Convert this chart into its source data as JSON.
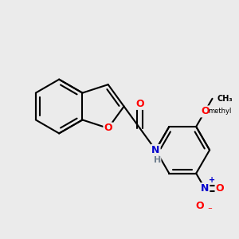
{
  "bg_color": "#ebebeb",
  "bond_color": "#000000",
  "bond_width": 1.5,
  "atom_colors": {
    "O": "#ff0000",
    "N_blue": "#0000cd",
    "H_gray": "#708090",
    "C": "#000000"
  },
  "font_size": 9,
  "font_size_small": 7,
  "xlim": [
    -1.5,
    1.7
  ],
  "ylim": [
    -1.1,
    0.9
  ]
}
